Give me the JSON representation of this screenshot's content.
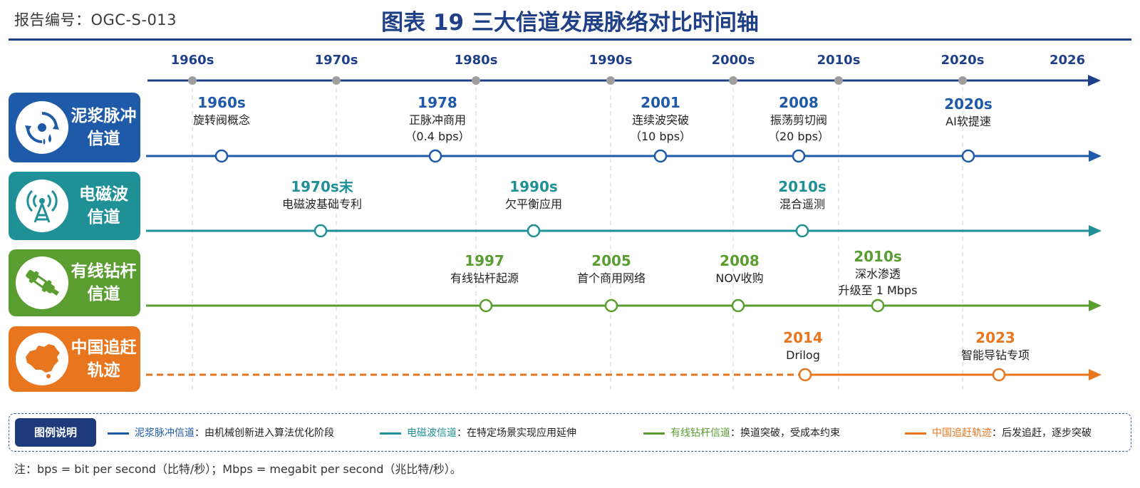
{
  "report_id": "报告编号：OGC-S-013",
  "title": "图表 19  三大信道发展脉络对比时间轴",
  "axis_ticks": [
    "1960s",
    "1970s",
    "1980s",
    "1990s",
    "2000s",
    "2010s",
    "2020s",
    "2026"
  ],
  "rows": [
    {
      "label_line1": "泥浆脉冲",
      "label_line2": "信道",
      "icon": "pulse-rotation-icon",
      "color": "#1f5aa8",
      "line_style": "solid",
      "events": [
        {
          "year": "1960s",
          "lines": [
            "旋转阀概念"
          ]
        },
        {
          "year": "1978",
          "lines": [
            "正脉冲商用",
            "（0.4 bps）"
          ]
        },
        {
          "year": "2001",
          "lines": [
            "连续波突破",
            "（10 bps）"
          ]
        },
        {
          "year": "2008",
          "lines": [
            "振荡剪切阀",
            "（20 bps）"
          ]
        },
        {
          "year": "2020s",
          "lines": [
            "AI软提速"
          ]
        }
      ]
    },
    {
      "label_line1": "电磁波",
      "label_line2": "信道",
      "icon": "antenna-tower-icon",
      "color": "#1f9196",
      "line_style": "solid",
      "events": [
        {
          "year": "1970s末",
          "lines": [
            "电磁波基础专利"
          ]
        },
        {
          "year": "1990s",
          "lines": [
            "欠平衡应用"
          ]
        },
        {
          "year": "2010s",
          "lines": [
            "混合遥测"
          ]
        }
      ]
    },
    {
      "label_line1": "有线钻杆",
      "label_line2": "信道",
      "icon": "drill-pipe-icon",
      "color": "#5a9e32",
      "line_style": "solid",
      "events": [
        {
          "year": "1997",
          "lines": [
            "有线钻杆起源"
          ]
        },
        {
          "year": "2005",
          "lines": [
            "首个商用网络"
          ]
        },
        {
          "year": "2008",
          "lines": [
            "NOV收购"
          ]
        },
        {
          "year": "2010s",
          "lines": [
            "深水渗透",
            "升级至 1 Mbps"
          ]
        }
      ]
    },
    {
      "label_line1": "中国追赶",
      "label_line2": "轨迹",
      "icon": "china-map-icon",
      "color": "#e8761e",
      "line_style": "dashed-then-solid",
      "events": [
        {
          "year": "2014",
          "lines": [
            "Drilog"
          ]
        },
        {
          "year": "2023",
          "lines": [
            "智能导钻专项"
          ]
        }
      ]
    }
  ],
  "legend": {
    "title": "图例说明",
    "items": [
      {
        "name": "泥浆脉冲信道",
        "desc": "：由机械创新进入算法优化阶段",
        "color": "#1f5aa8"
      },
      {
        "name": "电磁波信道",
        "desc": "：在特定场景实现应用延伸",
        "color": "#1f9196"
      },
      {
        "name": "有线钻杆信道",
        "desc": "：换道突破，受成本约束",
        "color": "#5a9e32"
      },
      {
        "name": "中国追赶轨迹",
        "desc": "：后发追赶，逐步突破",
        "color": "#e8761e"
      }
    ]
  },
  "footnote": "注：bps = bit per second（比特/秒）；Mbps = megabit per second（兆比特/秒）。"
}
